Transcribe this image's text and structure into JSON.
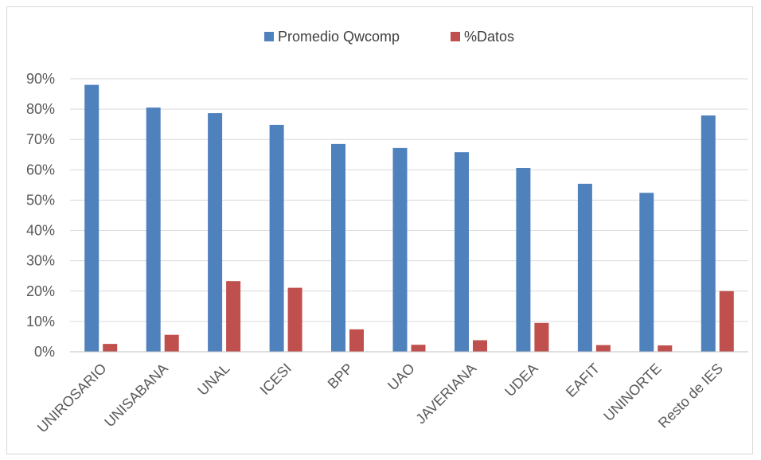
{
  "chart_data": {
    "type": "bar",
    "title": "",
    "xlabel": "",
    "ylabel": "",
    "ylim": [
      0,
      0.9
    ],
    "yticks": [
      "0%",
      "10%",
      "20%",
      "30%",
      "40%",
      "50%",
      "60%",
      "70%",
      "80%",
      "90%"
    ],
    "grid": true,
    "legend_position": "top",
    "categories": [
      "UNIROSARIO",
      "UNISABANA",
      "UNAL",
      "ICESI",
      "BPP",
      "UAO",
      "JAVERIANA",
      "UDEA",
      "EAFIT",
      "UNINORTE",
      "Resto de IES"
    ],
    "series": [
      {
        "name": "Promedio Qwcomp",
        "color": "#4f81bd",
        "values": [
          0.88,
          0.805,
          0.787,
          0.748,
          0.685,
          0.672,
          0.658,
          0.606,
          0.554,
          0.524,
          0.779
        ]
      },
      {
        "name": "%Datos",
        "color": "#c0504d",
        "values": [
          0.026,
          0.056,
          0.233,
          0.211,
          0.074,
          0.023,
          0.038,
          0.095,
          0.022,
          0.021,
          0.2
        ]
      }
    ]
  }
}
